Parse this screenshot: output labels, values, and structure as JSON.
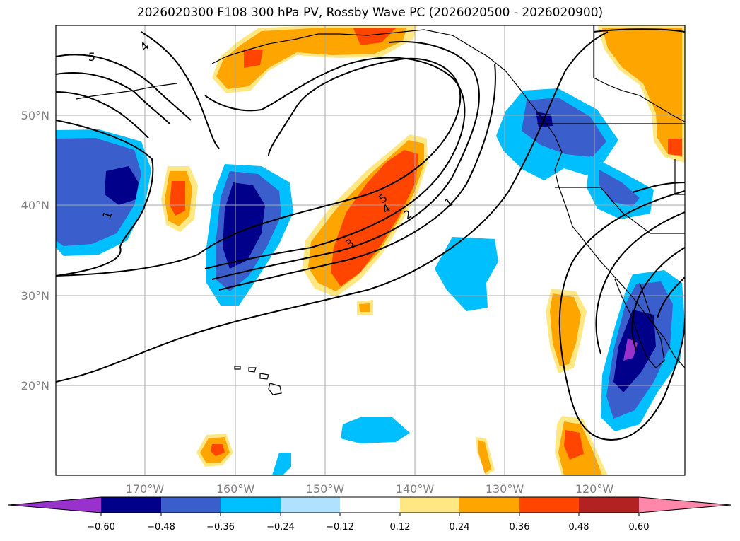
{
  "title": "2026020300 F108 300 hPa PV, Rossby Wave PC (2026020500 - 2026020900)",
  "map": {
    "lat_labels": [
      "50°N",
      "40°N",
      "30°N",
      "20°N"
    ],
    "lon_labels": [
      "170°W",
      "160°W",
      "150°W",
      "140°W",
      "130°W",
      "120°W"
    ],
    "contour_labels": [
      "5",
      "4",
      "1",
      "5",
      "4",
      "3",
      "2",
      "1"
    ]
  },
  "colorbar": {
    "tick_labels": [
      "−0.60",
      "−0.48",
      "−0.36",
      "−0.24",
      "−0.12",
      "0.12",
      "0.24",
      "0.36",
      "0.48",
      "0.60"
    ],
    "colors": [
      "#9932cc",
      "#00008b",
      "#3a5fcd",
      "#00bfff",
      "#b0e2ff",
      "#ffffff",
      "#ffe784",
      "#ffa500",
      "#ff4500",
      "#b22222",
      "#ff88aa"
    ]
  },
  "palette": {
    "orange": "#ffa500",
    "red_orange": "#ff4500",
    "light_yellow": "#ffe784",
    "navy": "#00008b",
    "royal_blue": "#3a5fcd",
    "deep_sky": "#00bfff",
    "light_blue": "#b0e2ff",
    "purple": "#9932cc"
  }
}
